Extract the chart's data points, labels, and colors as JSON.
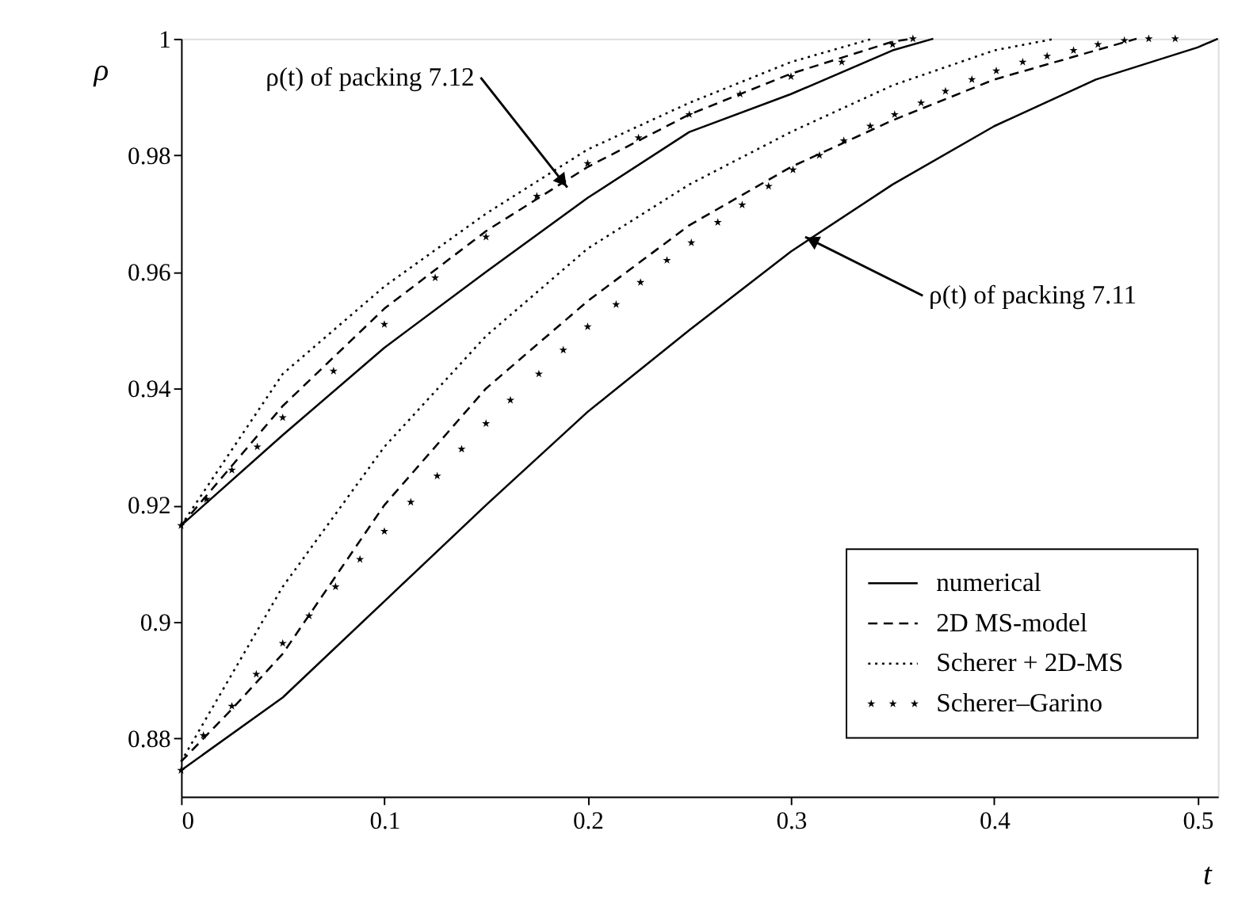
{
  "chart_data": {
    "type": "line",
    "xlabel": "t",
    "ylabel": "ρ",
    "xlim": [
      0,
      0.51
    ],
    "ylim": [
      0.87,
      1
    ],
    "xticks": [
      0,
      0.1,
      0.2,
      0.3,
      0.4,
      0.5
    ],
    "yticks": [
      0.88,
      0.9,
      0.92,
      0.94,
      0.96,
      0.98,
      1
    ],
    "legend": "bottom right",
    "grid": false,
    "annotations": [
      {
        "text": "ρ(t) of packing 7.12",
        "x": 0.19,
        "y": 0.9745
      },
      {
        "text": "ρ(t) of packing 7.11",
        "x": 0.307,
        "y": 0.966
      }
    ],
    "series": [
      {
        "name": "numerical",
        "color": "#000000",
        "line_style": "solid",
        "x": [
          0,
          0.05,
          0.1,
          0.15,
          0.2,
          0.25,
          0.3,
          0.35,
          0.4,
          0.45,
          0.5,
          0.51
        ],
        "values": [
          0.8745,
          0.887,
          0.9035,
          0.92,
          0.936,
          0.95,
          0.9635,
          0.975,
          0.985,
          0.993,
          0.9985,
          1
        ]
      },
      {
        "name": "2D MS-model",
        "color": "#000000",
        "line_style": "dashed",
        "x": [
          0,
          0.025,
          0.05,
          0.1,
          0.15,
          0.2,
          0.25,
          0.3,
          0.35,
          0.4,
          0.45,
          0.47
        ],
        "values": [
          0.876,
          0.885,
          0.8945,
          0.92,
          0.94,
          0.955,
          0.968,
          0.978,
          0.986,
          0.993,
          0.998,
          1
        ]
      },
      {
        "name": "Scherer + 2D-MS",
        "color": "#000000",
        "line_style": "dotted",
        "x": [
          0,
          0.05,
          0.1,
          0.15,
          0.2,
          0.25,
          0.3,
          0.35,
          0.4,
          0.43
        ],
        "values": [
          0.876,
          0.906,
          0.93,
          0.949,
          0.964,
          0.975,
          0.984,
          0.992,
          0.998,
          1
        ]
      },
      {
        "name": "Scherer–Garino",
        "color": "#000000",
        "type": "scatter",
        "marker": "star",
        "x": [
          0,
          0.011,
          0.025,
          0.037,
          0.05,
          0.063,
          0.076,
          0.088,
          0.1,
          0.113,
          0.126,
          0.138,
          0.15,
          0.162,
          0.176,
          0.188,
          0.2,
          0.214,
          0.226,
          0.239,
          0.251,
          0.264,
          0.276,
          0.289,
          0.301,
          0.314,
          0.326,
          0.339,
          0.351,
          0.364,
          0.376,
          0.389,
          0.401,
          0.414,
          0.426,
          0.439,
          0.451,
          0.464,
          0.476,
          0.489
        ],
        "values": [
          0.8745,
          0.8805,
          0.8855,
          0.891,
          0.8963,
          0.901,
          0.906,
          0.9107,
          0.9155,
          0.9205,
          0.925,
          0.9296,
          0.934,
          0.938,
          0.9425,
          0.9466,
          0.9506,
          0.9544,
          0.9582,
          0.962,
          0.965,
          0.9685,
          0.9715,
          0.9747,
          0.9775,
          0.98,
          0.9825,
          0.985,
          0.987,
          0.989,
          0.991,
          0.993,
          0.9945,
          0.996,
          0.997,
          0.998,
          0.999,
          0.9997,
          1,
          1
        ]
      },
      {
        "color": "#000000",
        "line_style": "solid",
        "x": [
          0,
          0.05,
          0.1,
          0.15,
          0.2,
          0.25,
          0.3,
          0.35,
          0.37
        ],
        "values": [
          0.9165,
          0.932,
          0.947,
          0.96,
          0.9727,
          0.984,
          0.9905,
          0.998,
          1
        ]
      },
      {
        "color": "#000000",
        "line_style": "dashed",
        "x": [
          0,
          0.05,
          0.1,
          0.15,
          0.2,
          0.25,
          0.3,
          0.35,
          0.36
        ],
        "values": [
          0.9165,
          0.937,
          0.9537,
          0.967,
          0.978,
          0.987,
          0.994,
          0.9995,
          1
        ]
      },
      {
        "color": "#000000",
        "line_style": "dotted",
        "x": [
          0,
          0.05,
          0.1,
          0.15,
          0.2,
          0.25,
          0.3,
          0.34
        ],
        "values": [
          0.9165,
          0.9425,
          0.9575,
          0.97,
          0.981,
          0.989,
          0.996,
          1
        ]
      },
      {
        "color": "#000000",
        "type": "scatter",
        "marker": "star",
        "x": [
          0,
          0.0125,
          0.025,
          0.0375,
          0.05,
          0.075,
          0.1,
          0.125,
          0.15,
          0.175,
          0.2,
          0.225,
          0.25,
          0.275,
          0.3,
          0.325,
          0.35,
          0.36
        ],
        "values": [
          0.9165,
          0.921,
          0.926,
          0.93,
          0.935,
          0.943,
          0.951,
          0.959,
          0.966,
          0.973,
          0.9786,
          0.983,
          0.987,
          0.9905,
          0.9935,
          0.996,
          0.999,
          1
        ]
      }
    ]
  }
}
